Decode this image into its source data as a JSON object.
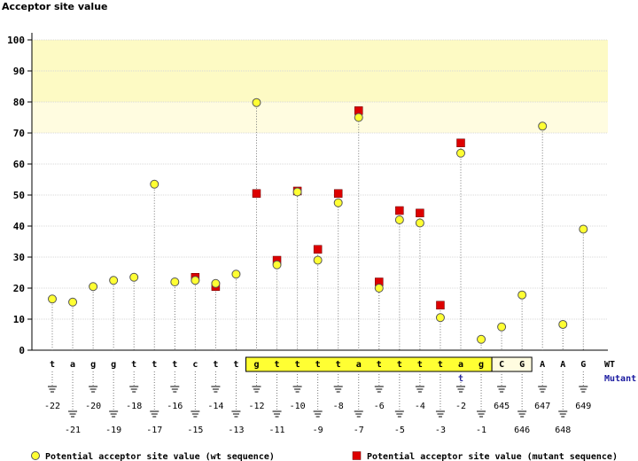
{
  "chart_data": {
    "type": "scatter",
    "title": "Acceptor site value",
    "ylim": [
      0,
      100
    ],
    "yticks": [
      0,
      10,
      20,
      30,
      40,
      50,
      60,
      70,
      80,
      90,
      100
    ],
    "highlight_bands": [
      {
        "from": 80,
        "to": 100,
        "color": "#fdfac4"
      },
      {
        "from": 70,
        "to": 80,
        "color": "#fffce0"
      }
    ],
    "row_labels": {
      "wt": "WT",
      "mutant": "Mutant"
    },
    "positions": [
      {
        "base": "t",
        "pos": "-22",
        "wt": 16.5,
        "mut": null
      },
      {
        "base": "a",
        "pos": "-21",
        "wt": 15.5,
        "mut": null
      },
      {
        "base": "g",
        "pos": "-20",
        "wt": 20.5,
        "mut": null
      },
      {
        "base": "g",
        "pos": "-19",
        "wt": 22.5,
        "mut": null
      },
      {
        "base": "t",
        "pos": "-18",
        "wt": 23.5,
        "mut": null
      },
      {
        "base": "t",
        "pos": "-17",
        "wt": 53.5,
        "mut": null
      },
      {
        "base": "t",
        "pos": "-16",
        "wt": 22.0,
        "mut": null
      },
      {
        "base": "c",
        "pos": "-15",
        "wt": 22.5,
        "mut": 23.5
      },
      {
        "base": "t",
        "pos": "-14",
        "wt": 21.5,
        "mut": 20.5
      },
      {
        "base": "t",
        "pos": "-13",
        "wt": 24.5,
        "mut": null
      },
      {
        "base": "g",
        "pos": "-12",
        "wt": 79.8,
        "mut": 50.5
      },
      {
        "base": "t",
        "pos": "-11",
        "wt": 27.5,
        "mut": 29.0
      },
      {
        "base": "t",
        "pos": "-10",
        "wt": 51.0,
        "mut": 51.3
      },
      {
        "base": "t",
        "pos": "-9",
        "wt": 29.0,
        "mut": 32.5
      },
      {
        "base": "t",
        "pos": "-8",
        "wt": 47.5,
        "mut": 50.5
      },
      {
        "base": "a",
        "pos": "-7",
        "wt": 75.0,
        "mut": 77.2
      },
      {
        "base": "t",
        "pos": "-6",
        "wt": 20.0,
        "mut": 22.0
      },
      {
        "base": "t",
        "pos": "-5",
        "wt": 42.0,
        "mut": 45.0
      },
      {
        "base": "t",
        "pos": "-4",
        "wt": 41.0,
        "mut": 44.2
      },
      {
        "base": "t",
        "pos": "-3",
        "wt": 10.5,
        "mut": 14.5
      },
      {
        "base": "a",
        "pos": "-2",
        "wt": 63.5,
        "mut": 66.8,
        "mut_base": "t"
      },
      {
        "base": "g",
        "pos": "-1",
        "wt": 3.5,
        "mut": null
      },
      {
        "base": "C",
        "pos": "645",
        "wt": 7.5,
        "mut": null
      },
      {
        "base": "G",
        "pos": "646",
        "wt": 17.8,
        "mut": null
      },
      {
        "base": "A",
        "pos": "647",
        "wt": 72.2,
        "mut": null
      },
      {
        "base": "A",
        "pos": "648",
        "wt": 8.3,
        "mut": null
      },
      {
        "base": "G",
        "pos": "649",
        "wt": 39.0,
        "mut": null
      }
    ],
    "intron_highlight": {
      "from_index": 10,
      "to_index": 21,
      "color": "#ffff33"
    },
    "exon_box": {
      "from_index": 22,
      "to_index": 23,
      "color": "#fffce0"
    },
    "legend": [
      {
        "label": "Potential acceptor site value (wt sequence)",
        "marker": "circle",
        "color": "#ffff33"
      },
      {
        "label": "Potential acceptor site value (mutant sequence)",
        "marker": "square",
        "color": "#dd0000"
      }
    ]
  }
}
